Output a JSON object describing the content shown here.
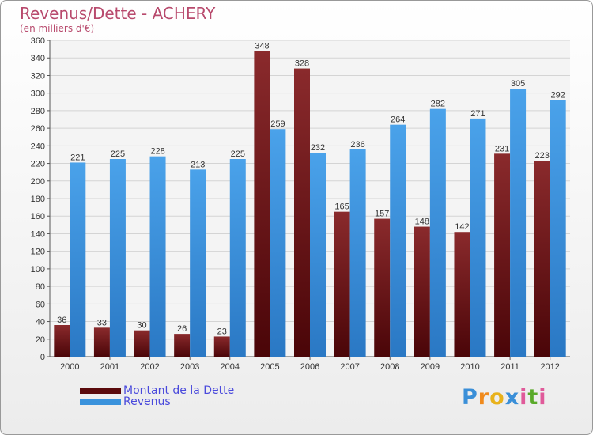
{
  "page": {
    "title": "Revenus/Dette - ACHERY",
    "subtitle": "(en milliers d'€)"
  },
  "chart_data": {
    "type": "bar",
    "title": "Revenus/Dette - ACHERY",
    "subtitle": "(en milliers d'€)",
    "categories": [
      "2000",
      "2001",
      "2002",
      "2003",
      "2004",
      "2005",
      "2006",
      "2007",
      "2008",
      "2009",
      "2010",
      "2011",
      "2012"
    ],
    "series": [
      {
        "name": "Montant de la Dette",
        "color": "#7a1a1c",
        "values": [
          36,
          33,
          30,
          26,
          23,
          348,
          328,
          165,
          157,
          148,
          142,
          231,
          223
        ]
      },
      {
        "name": "Revenus",
        "color": "#3a92dc",
        "values": [
          221,
          225,
          228,
          213,
          225,
          259,
          232,
          236,
          264,
          282,
          271,
          305,
          292
        ]
      }
    ],
    "ylim": [
      0,
      360
    ],
    "yticks": [
      0,
      20,
      40,
      60,
      80,
      100,
      120,
      140,
      160,
      180,
      200,
      220,
      240,
      260,
      280,
      300,
      320,
      340,
      360
    ],
    "grid": true,
    "legend_position": "bottom-left"
  },
  "legend": {
    "items": [
      {
        "label": "Montant de la Dette",
        "color": "#5a0a0c"
      },
      {
        "label": "Revenus",
        "color": "#3a92dc"
      }
    ]
  },
  "logo": {
    "letters": [
      "P",
      "r",
      "o",
      "x",
      "i",
      "t",
      "i"
    ],
    "colors": [
      "#3a8fd8",
      "#f08a1c",
      "#e8b21c",
      "#3a8fd8",
      "#e05a9a",
      "#5aaa2a",
      "#e05a9a"
    ]
  }
}
